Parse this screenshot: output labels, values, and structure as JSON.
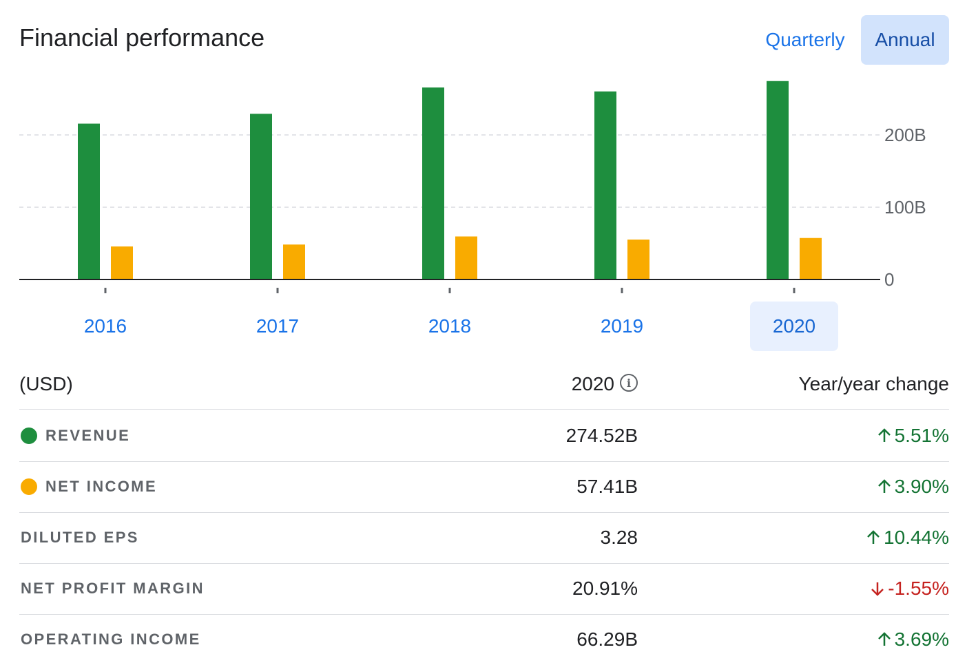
{
  "header": {
    "title": "Financial performance",
    "toggle_quarterly": "Quarterly",
    "toggle_annual": "Annual"
  },
  "chart_data": {
    "type": "bar",
    "categories": [
      "2016",
      "2017",
      "2018",
      "2019",
      "2020"
    ],
    "series": [
      {
        "name": "REVENUE",
        "color": "#1e8e3e",
        "values": [
          215.64,
          229.23,
          265.6,
          260.17,
          274.52
        ]
      },
      {
        "name": "NET INCOME",
        "color": "#f9ab00",
        "values": [
          45.69,
          48.35,
          59.53,
          55.26,
          57.41
        ]
      }
    ],
    "ylim": [
      0,
      270
    ],
    "yticks": [
      "0",
      "100B",
      "200B"
    ],
    "ytick_values": [
      0,
      100,
      200
    ],
    "selected_category": "2020",
    "grid": true
  },
  "table": {
    "col_unit": "(USD)",
    "col_year": "2020",
    "col_change": "Year/year change",
    "info_icon": "info-icon",
    "rows": [
      {
        "label": "REVENUE",
        "value": "274.52B",
        "change": "5.51%",
        "direction": "up",
        "dot_color": "#1e8e3e"
      },
      {
        "label": "NET INCOME",
        "value": "57.41B",
        "change": "3.90%",
        "direction": "up",
        "dot_color": "#f9ab00"
      },
      {
        "label": "DILUTED EPS",
        "value": "3.28",
        "change": "10.44%",
        "direction": "up"
      },
      {
        "label": "NET PROFIT MARGIN",
        "value": "20.91%",
        "change": "-1.55%",
        "direction": "down"
      },
      {
        "label": "OPERATING INCOME",
        "value": "66.29B",
        "change": "3.69%",
        "direction": "up"
      }
    ]
  }
}
